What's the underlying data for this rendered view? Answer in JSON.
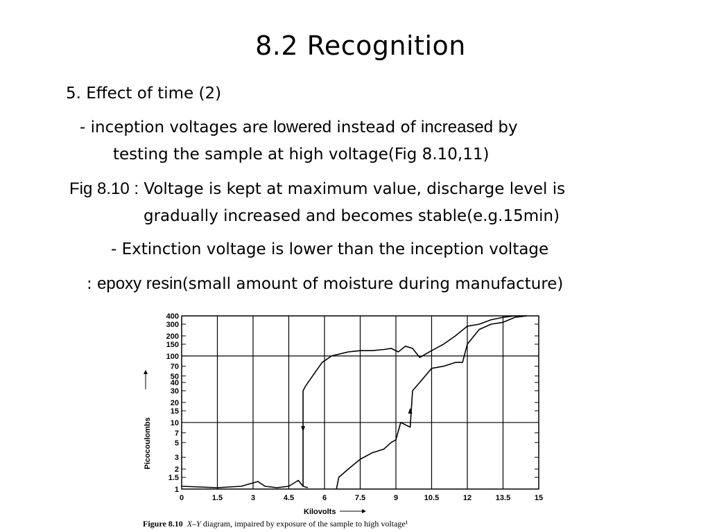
{
  "slide": {
    "title": "8.2 Recognition",
    "heading": "5. Effect of time (2)",
    "l1_a": "- inception voltages are ",
    "l1_b": "lowered",
    "l1_c": " instead of ",
    "l1_d": "increased",
    "l1_e": " by",
    "l2": "testing the sample at high voltage(Fig 8.10,11)",
    "l3_a": "Fig 8.10 :",
    "l3_b": "  Voltage is kept at maximum value, discharge level is",
    "l4": "gradually increased and becomes stable(e.g.15min)",
    "l5": "- Extinction voltage is lower than the inception voltage",
    "l6_a": ": ",
    "l6_b": "epoxy resin",
    "l6_c": "(small amount of moisture during manufacture)"
  },
  "figure": {
    "caption_bold": "Figure 8.10",
    "caption_xy": "X–Y",
    "caption_rest": " diagram, impaired by exposure of the sample to high voltage¹",
    "xlabel": "Kilovolts",
    "ylabel": "Picocoulombs"
  },
  "chart_data": {
    "type": "line",
    "title": "",
    "xlabel": "Kilovolts",
    "ylabel": "Picocoulombs",
    "xlim": [
      0,
      15
    ],
    "ylim": [
      1,
      400
    ],
    "yscale": "log",
    "x_ticks": [
      "0",
      "1.5",
      "3",
      "4.5",
      "6",
      "7.5",
      "9",
      "10.5",
      "12",
      "13.5",
      "15"
    ],
    "y_ticks": [
      "1",
      "1.5",
      "2",
      "3",
      "5",
      "7",
      "10",
      "15",
      "20",
      "30",
      "40",
      "50",
      "70",
      "100",
      "150",
      "200",
      "300",
      "400"
    ],
    "grid": true,
    "legend": "none",
    "series": [
      {
        "x": [
          0,
          1.5,
          2.5,
          3.2,
          3.5,
          4.0,
          4.5,
          4.9,
          5.1,
          5.3
        ],
        "y": [
          1.1,
          1.05,
          1.1,
          1.3,
          1.1,
          1.05,
          1.1,
          1.35,
          1.1,
          1.05
        ]
      },
      {
        "x": [
          5.1,
          5.1,
          5.2,
          5.5,
          5.9,
          6.3,
          7.0,
          7.5,
          8.0,
          8.5,
          8.8,
          9.1,
          9.4,
          9.7,
          10.0,
          10.5,
          11.0,
          11.5,
          12.0,
          12.5,
          13.0,
          13.5,
          14.0,
          14.5
        ],
        "y": [
          1.1,
          30,
          35,
          50,
          80,
          100,
          115,
          120,
          120,
          125,
          130,
          115,
          140,
          130,
          95,
          120,
          150,
          200,
          280,
          300,
          350,
          380,
          400,
          400
        ]
      },
      {
        "x": [
          6.5,
          6.6,
          7.0,
          7.5,
          8.0,
          8.5,
          8.8,
          9.0,
          9.2,
          9.6,
          9.7,
          10.0,
          10.5,
          11.0,
          11.5,
          11.8,
          12.0,
          12.5,
          13.0,
          13.5,
          14.0,
          14.5
        ],
        "y": [
          1.0,
          1.5,
          2.0,
          2.8,
          3.5,
          4.0,
          5.0,
          5.5,
          10,
          8.5,
          30,
          40,
          65,
          70,
          80,
          80,
          150,
          250,
          300,
          320,
          380,
          400
        ]
      }
    ],
    "annotations": [
      {
        "type": "arrow-down",
        "x": 5.1,
        "y": 8
      },
      {
        "type": "arrow-up",
        "x": 9.6,
        "y": 15
      }
    ]
  }
}
